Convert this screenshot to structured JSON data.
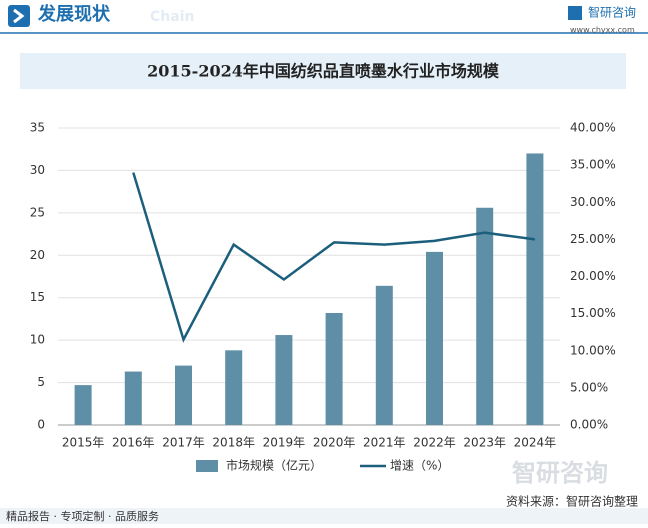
{
  "header": {
    "title": "发展现状",
    "subtitle": "Chain",
    "brand": "智研咨询",
    "url": "www.chyxx.com"
  },
  "chart_data": {
    "type": "combo",
    "title": "2015-2024年中国纺织品直喷墨水行业市场规模",
    "categories": [
      "2015年",
      "2016年",
      "2017年",
      "2018年",
      "2019年",
      "2020年",
      "2021年",
      "2022年",
      "2023年",
      "2024年"
    ],
    "series": [
      {
        "name": "市场规模（亿元）",
        "type": "bar",
        "color": "#5e8fa6",
        "values": [
          4.7,
          6.3,
          7.0,
          8.8,
          10.6,
          13.2,
          16.4,
          20.4,
          25.6,
          32.0
        ]
      },
      {
        "name": "增速（%）",
        "type": "line",
        "axis": "y2",
        "color": "#1b5f7c",
        "values": [
          null,
          34.0,
          11.5,
          24.3,
          19.6,
          24.6,
          24.3,
          24.8,
          25.9,
          25.0
        ]
      }
    ],
    "ylim": [
      0,
      35
    ],
    "yticks": [
      0,
      5,
      10,
      15,
      20,
      25,
      30,
      35
    ],
    "y2lim": [
      0,
      40
    ],
    "y2ticks": [
      {
        "value": 0,
        "label": "0.00%"
      },
      {
        "value": 5,
        "label": "5.00%"
      },
      {
        "value": 10,
        "label": "10.00%"
      },
      {
        "value": 15,
        "label": "15.00%"
      },
      {
        "value": 20,
        "label": "20.00%"
      },
      {
        "value": 25,
        "label": "25.00%"
      },
      {
        "value": 30,
        "label": "30.00%"
      },
      {
        "value": 35,
        "label": "35.00%"
      },
      {
        "value": 40,
        "label": "40.00%"
      }
    ],
    "grid": true,
    "legend": "bottom"
  },
  "footer": {
    "left": "精品报告 · 专项定制 · 品质服务",
    "source": "资料来源：智研咨询整理",
    "watermark": "智研咨询"
  }
}
